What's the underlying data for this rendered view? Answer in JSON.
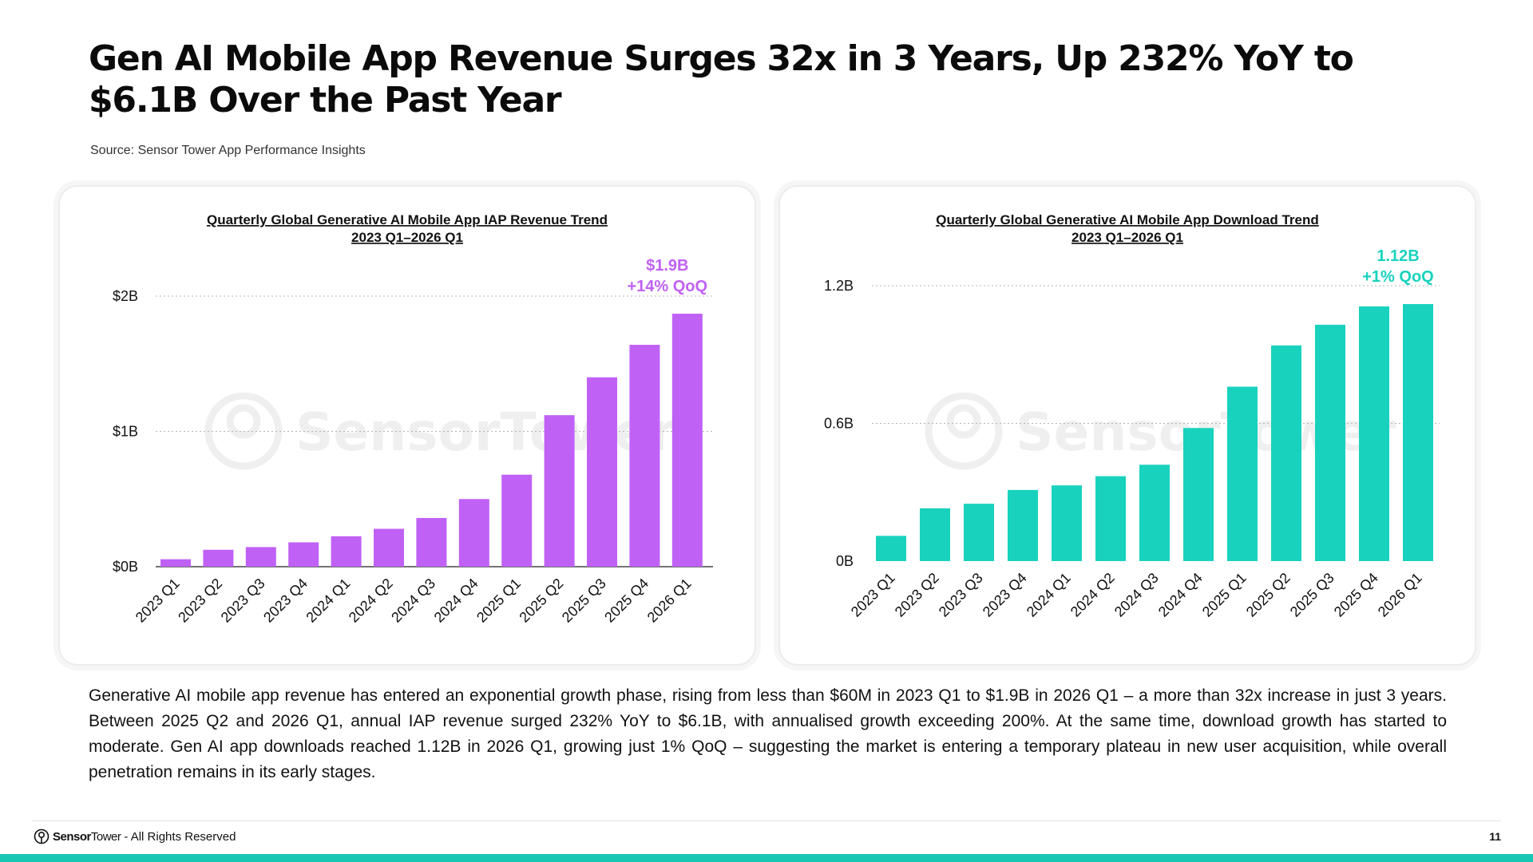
{
  "title": "Gen AI Mobile App Revenue Surges 32x in 3 Years, Up 232% YoY to $6.1B Over the Past Year",
  "source": "Source: Sensor Tower App Performance Insights",
  "watermark": "SensorTower",
  "body": "Generative AI mobile app revenue has entered an exponential growth phase, rising from less than $60M in 2023 Q1 to $1.9B in 2026 Q1 – a more than 32x increase in just 3 years. Between 2025 Q2 and 2026 Q1, annual IAP revenue surged 232% YoY to $6.1B, with annualised growth exceeding 200%. At the same time, download growth has started to moderate. Gen AI app downloads reached 1.12B in 2026 Q1, growing just 1% QoQ – suggesting the market is entering a temporary plateau in new user acquisition, while overall penetration remains in its early stages.",
  "footer": {
    "brand_bold": "Sensor",
    "brand_light": "Tower",
    "rights": " - All Rights Reserved",
    "page_number": "11"
  },
  "colors": {
    "revenue": "#c061f5",
    "downloads": "#18d2be",
    "footer_bar": "#18c6b4"
  },
  "chart_data": [
    {
      "type": "bar",
      "title": "Quarterly Global Generative AI Mobile App IAP Revenue Trend",
      "subtitle": "2023 Q1–2026 Q1",
      "categories": [
        "2023 Q1",
        "2023 Q2",
        "2023 Q3",
        "2023 Q4",
        "2024 Q1",
        "2024 Q2",
        "2024 Q3",
        "2024 Q4",
        "2025 Q1",
        "2025 Q2",
        "2025 Q3",
        "2025 Q4",
        "2026 Q1"
      ],
      "values": [
        0.055,
        0.125,
        0.145,
        0.18,
        0.225,
        0.28,
        0.36,
        0.5,
        0.68,
        1.12,
        1.4,
        1.64,
        1.87
      ],
      "ylim": [
        0,
        2
      ],
      "yticks": [
        0,
        1,
        2
      ],
      "ytick_labels": [
        "$0B",
        "$1B",
        "$2B"
      ],
      "grid": "dotted",
      "annotation": [
        "$1.9B",
        "+14% QoQ"
      ],
      "color": "#c061f5"
    },
    {
      "type": "bar",
      "title": "Quarterly Global Generative AI Mobile App Download Trend",
      "subtitle": "2023 Q1–2026 Q1",
      "categories": [
        "2023 Q1",
        "2023 Q2",
        "2023 Q3",
        "2023 Q4",
        "2024 Q1",
        "2024 Q2",
        "2024 Q3",
        "2024 Q4",
        "2025 Q1",
        "2025 Q2",
        "2025 Q3",
        "2025 Q4",
        "2026 Q1"
      ],
      "values": [
        0.11,
        0.23,
        0.25,
        0.31,
        0.33,
        0.37,
        0.42,
        0.58,
        0.76,
        0.94,
        1.03,
        1.11,
        1.12
      ],
      "ylim": [
        0,
        1.2
      ],
      "yticks": [
        0,
        0.6,
        1.2
      ],
      "ytick_labels": [
        "0B",
        "0.6B",
        "1.2B"
      ],
      "grid": "dotted",
      "annotation": [
        "1.12B",
        "+1% QoQ"
      ],
      "color": "#18d2be"
    }
  ]
}
